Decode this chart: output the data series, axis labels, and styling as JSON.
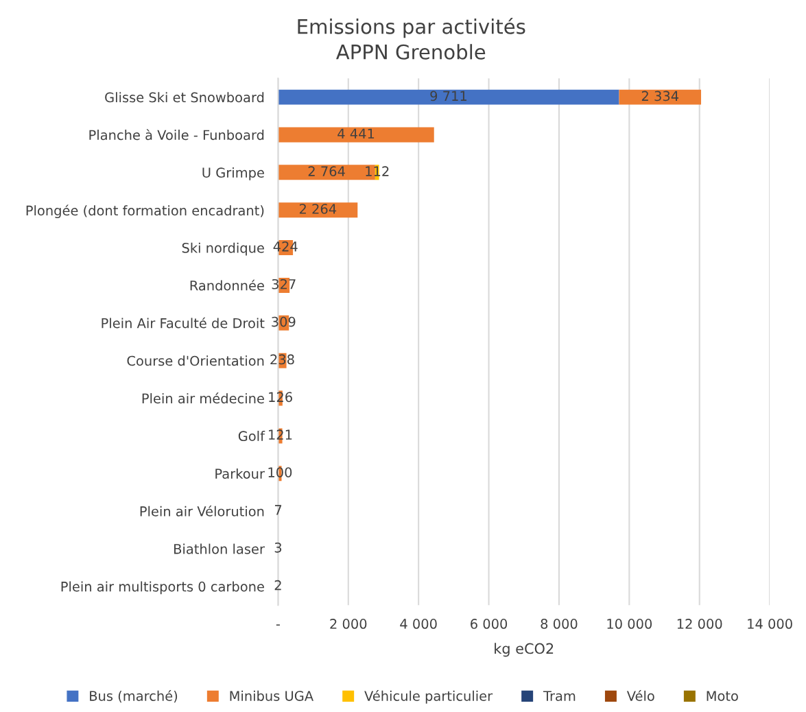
{
  "chart_data": {
    "type": "bar",
    "orientation": "horizontal",
    "stacked": true,
    "title": "Emissions par activités\nAPPN Grenoble",
    "xlabel": "kg eCO2",
    "categories": [
      "Glisse Ski et Snowboard",
      "Planche à Voile - Funboard",
      "U Grimpe",
      "Plongée (dont formation encadrant)",
      "Ski nordique",
      "Randonnée",
      "Plein Air Faculté de Droit",
      "Course d'Orientation",
      "Plein air médecine",
      "Golf",
      "Parkour",
      "Plein air Vélorution",
      "Biathlon laser",
      "Plein air multisports 0 carbone"
    ],
    "series": [
      {
        "name": "Bus (marché)",
        "color": "#4472c4",
        "values": [
          9711,
          0,
          0,
          0,
          0,
          0,
          0,
          0,
          0,
          0,
          0,
          0,
          0,
          0
        ],
        "value_labels": [
          "9 711",
          null,
          null,
          null,
          null,
          null,
          null,
          null,
          null,
          null,
          null,
          null,
          null,
          null
        ]
      },
      {
        "name": "Minibus UGA",
        "color": "#ed7d31",
        "values": [
          2334,
          4441,
          2764,
          2264,
          424,
          327,
          309,
          238,
          126,
          121,
          100,
          0,
          0,
          0
        ],
        "value_labels": [
          "2 334",
          "4 441",
          "2 764",
          "2 264",
          "424",
          "327",
          "309",
          "238",
          "126",
          "121",
          "100",
          null,
          null,
          null
        ]
      },
      {
        "name": "Véhicule particulier",
        "color": "#ffc000",
        "values": [
          0,
          0,
          112,
          0,
          0,
          0,
          0,
          0,
          0,
          0,
          0,
          0,
          0,
          0
        ],
        "value_labels": [
          null,
          null,
          "112",
          null,
          null,
          null,
          null,
          null,
          null,
          null,
          null,
          null,
          null,
          null
        ]
      },
      {
        "name": "Tram",
        "color": "#264478",
        "values": [
          0,
          0,
          0,
          0,
          0,
          0,
          0,
          0,
          0,
          0,
          0,
          0,
          3,
          0
        ],
        "value_labels": [
          null,
          null,
          null,
          null,
          null,
          null,
          null,
          null,
          null,
          null,
          null,
          null,
          "3",
          null
        ]
      },
      {
        "name": "Vélo",
        "color": "#9e480e",
        "values": [
          0,
          0,
          0,
          0,
          0,
          0,
          0,
          0,
          0,
          0,
          0,
          7,
          0,
          2
        ],
        "value_labels": [
          null,
          null,
          null,
          null,
          null,
          null,
          null,
          null,
          null,
          null,
          null,
          "7",
          null,
          "2"
        ]
      },
      {
        "name": "Moto",
        "color": "#997300",
        "values": [
          0,
          0,
          0,
          0,
          0,
          0,
          0,
          0,
          0,
          0,
          0,
          0,
          0,
          0
        ]
      }
    ],
    "xlim": [
      0,
      14000
    ],
    "xticks": [
      {
        "value": 0,
        "label": "-"
      },
      {
        "value": 2000,
        "label": "2 000"
      },
      {
        "value": 4000,
        "label": "4 000"
      },
      {
        "value": 6000,
        "label": "6 000"
      },
      {
        "value": 8000,
        "label": "8 000"
      },
      {
        "value": 10000,
        "label": "10 000"
      },
      {
        "value": 12000,
        "label": "12 000"
      },
      {
        "value": 14000,
        "label": "14 000"
      }
    ],
    "grid": "x",
    "legend": "bottom"
  }
}
